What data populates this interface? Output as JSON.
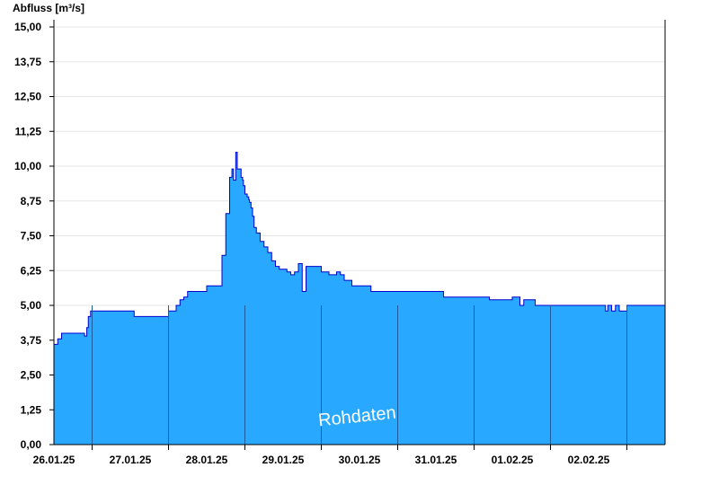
{
  "chart_data": {
    "type": "area",
    "title": "",
    "ylabel": "Abfluss [m³/s]",
    "xlabel": "",
    "watermark": "Rohdaten",
    "ylim": [
      0,
      15
    ],
    "yticks": [
      "0,00",
      "1,25",
      "2,50",
      "3,75",
      "5,00",
      "6,25",
      "7,50",
      "8,75",
      "10,00",
      "11,25",
      "12,50",
      "13,75",
      "15,00"
    ],
    "xticks": [
      "26.01.25",
      "27.01.25",
      "28.01.25",
      "29.01.25",
      "30.01.25",
      "31.01.25",
      "01.02.25",
      "02.02.25"
    ],
    "xlim_days": [
      25.5,
      33.5
    ],
    "grid": true,
    "fill_color": "#29a8ff",
    "line_color": "#0000cc",
    "series": [
      {
        "x": [
          25.5,
          25.55,
          25.6,
          25.65,
          25.9,
          25.93,
          25.95,
          25.98,
          26.0,
          26.5,
          26.55,
          26.7,
          26.9,
          27.0,
          27.05,
          27.1,
          27.15,
          27.2,
          27.25,
          27.3,
          27.5,
          27.55,
          27.7,
          27.75,
          27.8,
          27.83,
          27.85,
          27.88,
          27.9,
          27.93,
          27.95,
          27.97,
          27.98,
          28.0,
          28.02,
          28.03,
          28.05,
          28.06,
          28.08,
          28.1,
          28.12,
          28.15,
          28.2,
          28.25,
          28.3,
          28.35,
          28.4,
          28.45,
          28.5,
          28.55,
          28.6,
          28.65,
          28.7,
          28.75,
          28.8,
          28.85,
          28.9,
          28.92,
          28.93,
          28.95,
          29.0,
          29.1,
          29.2,
          29.25,
          29.3,
          29.35,
          29.4,
          29.45,
          29.5,
          29.55,
          29.6,
          29.65,
          29.7,
          29.8,
          30.0,
          30.2,
          30.5,
          30.6,
          30.65,
          30.7,
          30.75,
          30.8,
          30.85,
          30.9,
          31.0,
          31.2,
          31.4,
          31.5,
          31.6,
          31.65,
          31.7,
          31.75,
          31.8,
          32.0,
          32.5,
          32.7,
          32.72,
          32.75,
          32.8,
          32.85,
          32.9,
          33.0,
          33.3,
          33.5
        ],
        "y": [
          3.6,
          3.8,
          4.0,
          4.0,
          3.9,
          4.2,
          4.6,
          4.8,
          4.8,
          4.8,
          4.6,
          4.6,
          4.6,
          4.8,
          4.8,
          5.0,
          5.2,
          5.3,
          5.5,
          5.5,
          5.7,
          5.7,
          6.8,
          8.3,
          9.6,
          9.9,
          9.5,
          10.5,
          9.9,
          9.9,
          9.6,
          9.5,
          9.3,
          9.0,
          9.0,
          8.9,
          8.8,
          8.7,
          8.5,
          8.2,
          7.8,
          7.6,
          7.3,
          7.1,
          6.9,
          6.6,
          6.4,
          6.3,
          6.3,
          6.2,
          6.1,
          6.2,
          6.5,
          5.5,
          6.4,
          6.4,
          6.4,
          6.4,
          6.4,
          6.4,
          6.2,
          6.1,
          6.2,
          6.1,
          5.9,
          5.9,
          5.7,
          5.7,
          5.7,
          5.7,
          5.7,
          5.5,
          5.5,
          5.5,
          5.5,
          5.5,
          5.5,
          5.3,
          5.3,
          5.3,
          5.3,
          5.3,
          5.3,
          5.3,
          5.3,
          5.2,
          5.2,
          5.3,
          5.0,
          5.2,
          5.2,
          5.2,
          5.0,
          5.0,
          5.0,
          5.0,
          4.8,
          5.0,
          4.8,
          5.0,
          4.8,
          5.0,
          5.0,
          5.0
        ]
      }
    ]
  }
}
